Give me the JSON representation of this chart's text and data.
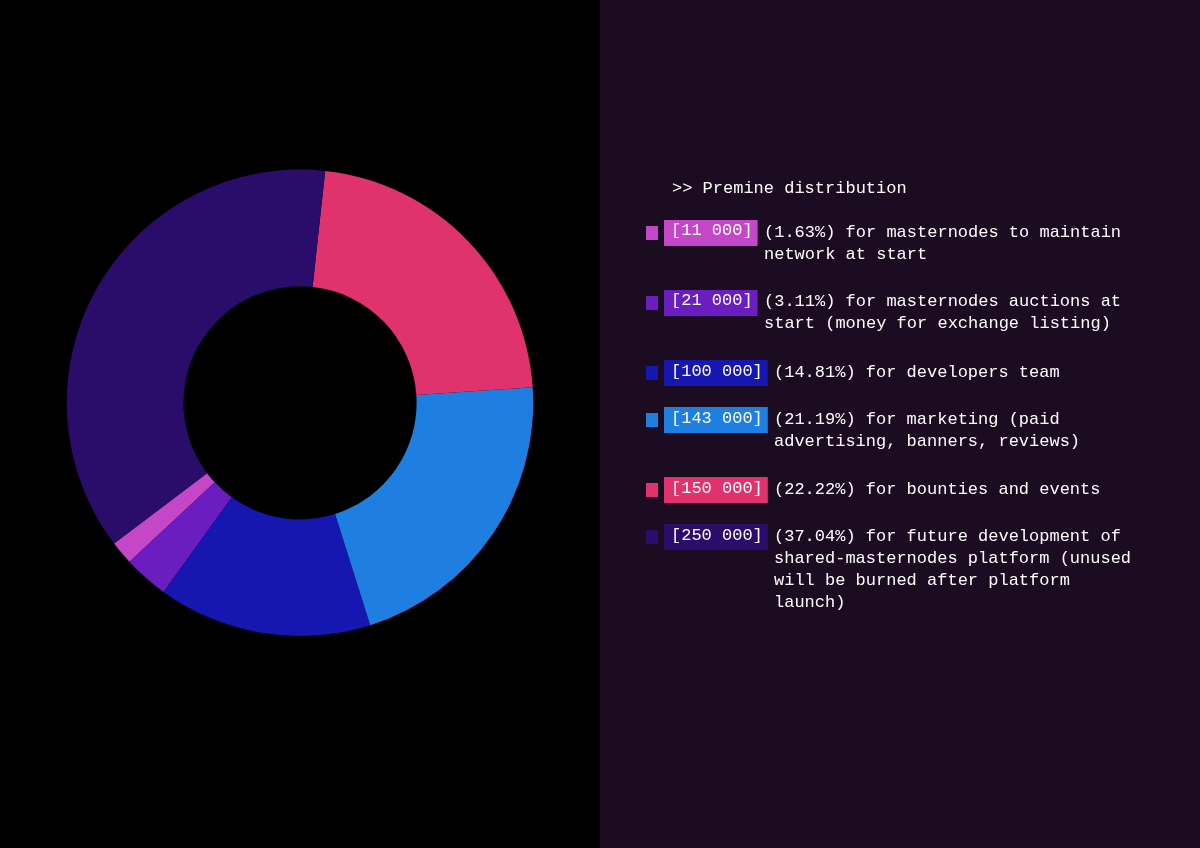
{
  "chart_data": {
    "type": "donut",
    "title": ">> Premine distribution",
    "categories": [
      "[11 000]",
      "[21 000]",
      "[100 000]",
      "[143 000]",
      "[150 000]",
      "[250 000]"
    ],
    "values": [
      11000,
      21000,
      100000,
      143000,
      150000,
      250000
    ],
    "colors": [
      "#c447c8",
      "#6a1ec0",
      "#1616b0",
      "#1e7fe0",
      "#e0336e",
      "#2a0d6a"
    ],
    "annotations": [
      "(1.63%) for masternodes to maintain network at start",
      "(3.11%) for masternodes auctions at start (money for exchange listing)",
      "(14.81%) for developers team",
      "(21.19%) for marketing (paid advertising, banners, reviews)",
      "(22.22%) for bounties and events",
      "(37.04%) for future development of shared-masternodes platform (unused will be burned after platform launch)"
    ],
    "legend": "right"
  }
}
